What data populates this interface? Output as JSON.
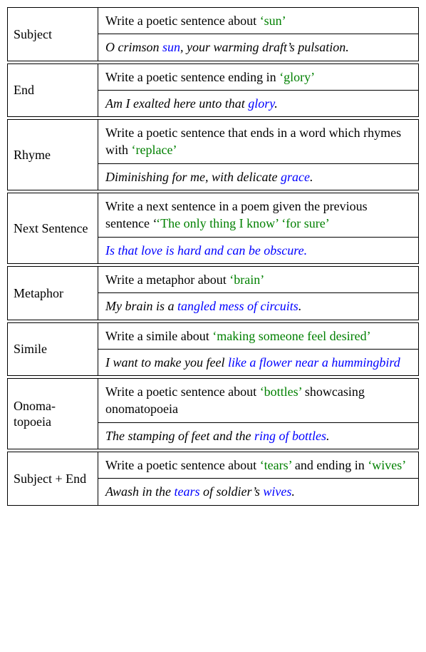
{
  "table": {
    "font_family": "Times New Roman",
    "font_size_pt": 11,
    "border_color": "#000000",
    "background_color": "#ffffff",
    "green_color": "#008000",
    "blue_color": "#0000ff",
    "rows": [
      {
        "label": "Subject",
        "prompt_pre": "Write a poetic sentence about ",
        "prompt_kw": "‘sun’",
        "prompt_post": "",
        "out_pre": "O crimson ",
        "out_kw": "sun",
        "out_post": ", your warming draft’s pulsation."
      },
      {
        "label": "End",
        "prompt_pre": "Write a poetic sentence ending in ",
        "prompt_kw": "‘glory’",
        "prompt_post": "",
        "out_pre": "Am I exalted here unto that ",
        "out_kw": "glory",
        "out_post": "."
      },
      {
        "label": "Rhyme",
        "prompt_pre": "Write a poetic sentence that ends in a word which rhymes with ",
        "prompt_kw": "‘replace’",
        "prompt_post": "",
        "out_pre": "Diminishing for me, with delicate ",
        "out_kw": "grace",
        "out_post": "."
      },
      {
        "label": "Next Sentence",
        "prompt_pre": "Write a next sentence in a poem given the previous sentence ‘",
        "prompt_kw": "‘The only thing I know’ ‘for sure’",
        "prompt_post": "",
        "out_pre": "",
        "out_kw": "Is that love is hard and can be obscure.",
        "out_post": ""
      },
      {
        "label": "Metaphor",
        "prompt_pre": "Write a metaphor about ",
        "prompt_kw": "‘brain’",
        "prompt_post": "",
        "out_pre": "My brain is a ",
        "out_kw": "tangled mess of circuits",
        "out_post": "."
      },
      {
        "label": "Simile",
        "prompt_pre": "Write a simile about ",
        "prompt_kw": "‘making someone feel desired’",
        "prompt_post": "",
        "out_pre": "I want to make you feel ",
        "out_kw": "like a flower near a hummingbird",
        "out_post": ""
      },
      {
        "label": "Onoma-topoeia",
        "prompt_pre": "Write a poetic sentence about ",
        "prompt_kw": "‘bottles’",
        "prompt_post": " showcasing onomatopoeia",
        "out_pre": "The stamping of feet and the ",
        "out_kw": "ring of bottles",
        "out_post": "."
      }
    ],
    "subject_end": {
      "label": "Subject + End",
      "p_pre1": "Write a poetic sentence about ",
      "p_kw1": "‘tears’",
      "p_mid": " and ending in ",
      "p_kw2": "‘wives’",
      "o_pre": "Awash in the ",
      "o_kw1": "tears",
      "o_mid": " of soldier’s ",
      "o_kw2": "wives",
      "o_post": "."
    }
  }
}
